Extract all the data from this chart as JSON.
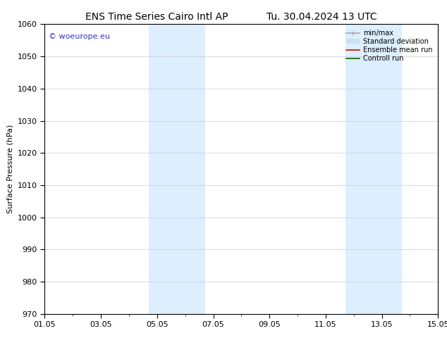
{
  "title_left": "ENS Time Series Cairo Intl AP",
  "title_right": "Tu. 30.04.2024 13 UTC",
  "ylabel": "Surface Pressure (hPa)",
  "xlim_start": 0,
  "xlim_end": 14,
  "ylim": [
    970,
    1060
  ],
  "yticks": [
    970,
    980,
    990,
    1000,
    1010,
    1020,
    1030,
    1040,
    1050,
    1060
  ],
  "xtick_labels": [
    "01.05",
    "03.05",
    "05.05",
    "07.05",
    "09.05",
    "11.05",
    "13.05",
    "15.05"
  ],
  "xtick_positions": [
    0,
    2,
    4,
    6,
    8,
    10,
    12,
    14
  ],
  "shaded_bands": [
    {
      "xmin": 3.7,
      "xmax": 5.7,
      "color": "#ddeeff"
    },
    {
      "xmin": 10.7,
      "xmax": 12.7,
      "color": "#ddeeff"
    }
  ],
  "watermark_text": "© woeurope.eu",
  "watermark_color": "#3333cc",
  "legend_items": [
    {
      "label": "min/max",
      "color": "#aaaaaa",
      "lw": 1.2
    },
    {
      "label": "Standard deviation",
      "color": "#cce0f0",
      "lw": 6
    },
    {
      "label": "Ensemble mean run",
      "color": "#dd0000",
      "lw": 1.2
    },
    {
      "label": "Controll run",
      "color": "#006600",
      "lw": 1.2
    }
  ],
  "bg_color": "#ffffff",
  "font_size": 8,
  "title_font_size": 10
}
